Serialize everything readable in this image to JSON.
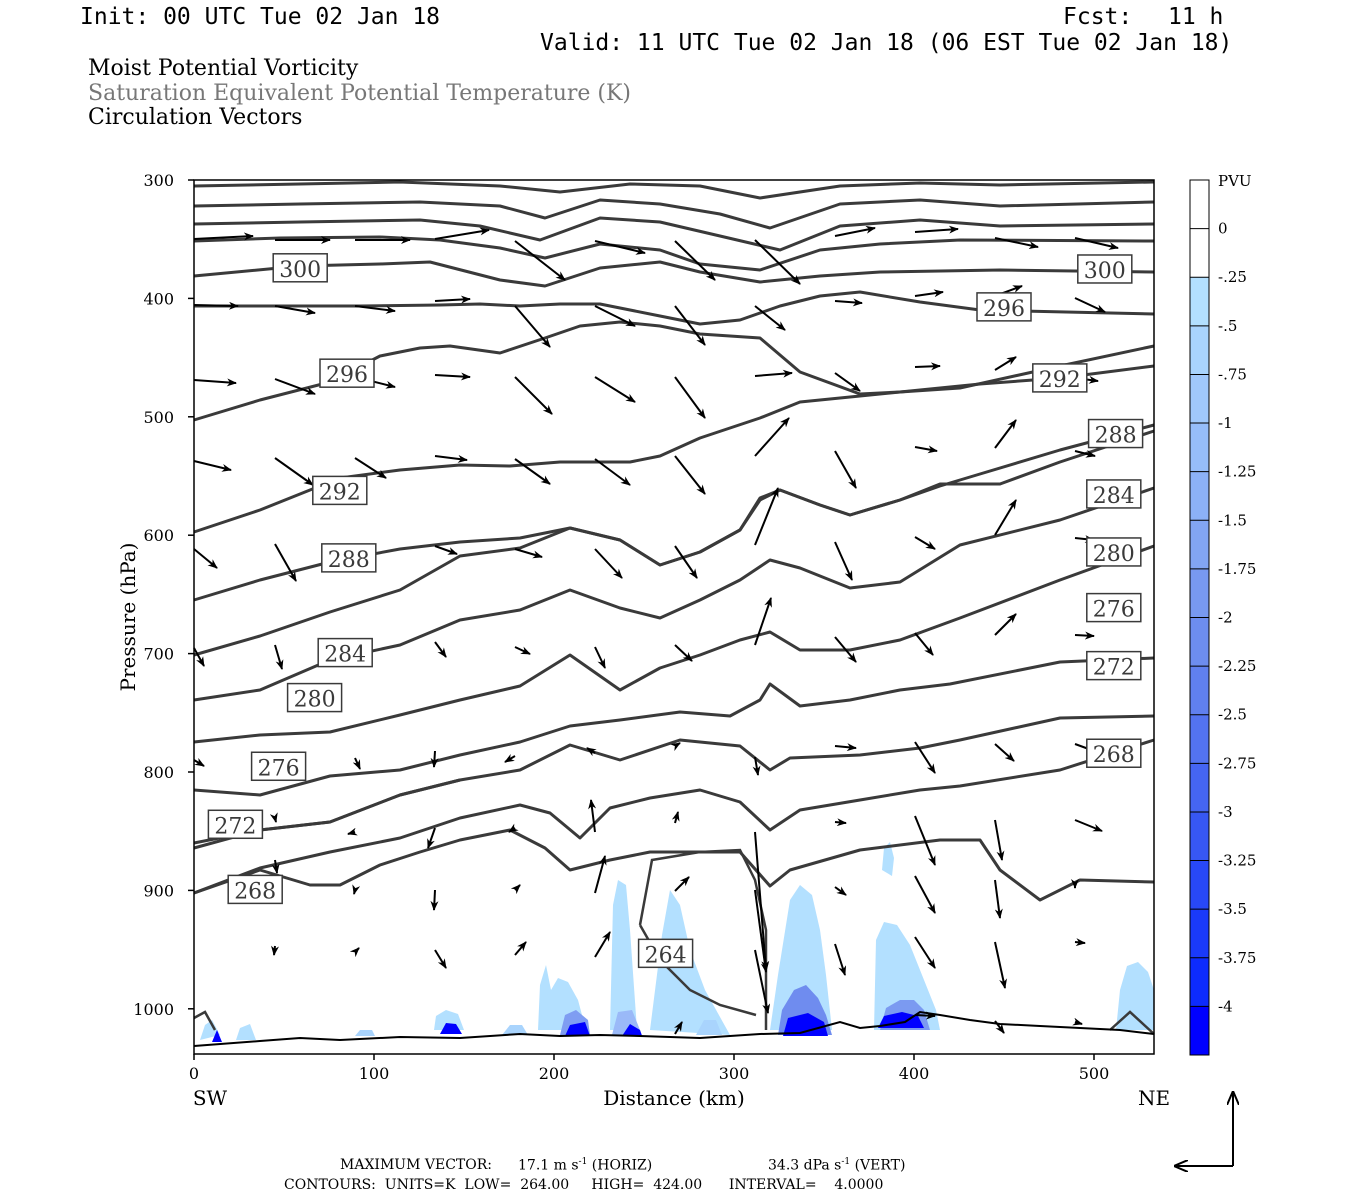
{
  "header": {
    "init": "Init: 00 UTC Tue 02 Jan 18",
    "fcst_label": "Fcst:",
    "fcst_value": "11 h",
    "valid": "Valid: 11 UTC Tue 02 Jan 18 (06 EST Tue 02 Jan 18)",
    "field_1": "Moist Potential Vorticity",
    "field_2": "Saturation Equivalent Potential Temperature (K)",
    "field_3": "Circulation Vectors"
  },
  "footer": {
    "max_vector_label": "MAXIMUM VECTOR:",
    "horiz_value": "17.1 m s",
    "horiz_unit": "(HORIZ)",
    "vert_value": "34.3 dPa s",
    "vert_unit": "(VERT)",
    "exponent": "-1",
    "contours": "CONTOURS:  UNITS=K  LOW=  264.00     HIGH=  424.00      INTERVAL=    4.0000"
  },
  "colors": {
    "contour": "#3a3a3a",
    "vector": "#000000",
    "shade_light": "#b3e0ff",
    "shade_strong": "#0000ff",
    "title_gray": "#777777"
  },
  "chart_data": {
    "type": "cross-section",
    "xlabel": "Distance (km)",
    "ylabel": "Pressure (hPa)",
    "xlim": [
      0,
      535
    ],
    "ylim": [
      1040,
      300
    ],
    "y_inverted": true,
    "x_ticks": [
      "0",
      "100",
      "200",
      "300",
      "400",
      "500"
    ],
    "y_ticks": [
      "300",
      "400",
      "500",
      "600",
      "700",
      "800",
      "900",
      "1000"
    ],
    "endpoint_left": "SW",
    "endpoint_right": "NE",
    "colorbar": {
      "unit": "PVU",
      "labels": [
        "0",
        "-.25",
        "-.5",
        "-.75",
        "-1",
        "-1.25",
        "-1.5",
        "-1.75",
        "-2",
        "-2.25",
        "-2.5",
        "-2.75",
        "-3",
        "-3.25",
        "-3.5",
        "-3.75",
        "-4"
      ],
      "colors": [
        "#ffffff",
        "#ffffff",
        "#b3e0ff",
        "#a9d4fd",
        "#a0c8fb",
        "#96bdf9",
        "#8cb1f6",
        "#82a5f3",
        "#7899f0",
        "#6d8def",
        "#6080ef",
        "#5373f0",
        "#4565f2",
        "#3757f4",
        "#2848f7",
        "#1a3afa",
        "#0d2bfd",
        "#0000ff"
      ]
    },
    "contour_labels": [
      {
        "value": "300",
        "x": 59,
        "p": 375
      },
      {
        "value": "300",
        "x": 506,
        "p": 376
      },
      {
        "value": "296",
        "x": 450,
        "p": 408
      },
      {
        "value": "296",
        "x": 85,
        "p": 464
      },
      {
        "value": "292",
        "x": 481,
        "p": 468
      },
      {
        "value": "292",
        "x": 81,
        "p": 563
      },
      {
        "value": "288",
        "x": 512,
        "p": 515
      },
      {
        "value": "288",
        "x": 86,
        "p": 620
      },
      {
        "value": "284",
        "x": 511,
        "p": 566
      },
      {
        "value": "284",
        "x": 84,
        "p": 700
      },
      {
        "value": "280",
        "x": 511,
        "p": 615
      },
      {
        "value": "280",
        "x": 67,
        "p": 738
      },
      {
        "value": "276",
        "x": 511,
        "p": 662
      },
      {
        "value": "276",
        "x": 47,
        "p": 796
      },
      {
        "value": "272",
        "x": 511,
        "p": 711
      },
      {
        "value": "272",
        "x": 23,
        "p": 845
      },
      {
        "value": "268",
        "x": 511,
        "p": 785
      },
      {
        "value": "268",
        "x": 34,
        "p": 900
      },
      {
        "value": "264",
        "x": 262,
        "p": 954
      }
    ]
  }
}
